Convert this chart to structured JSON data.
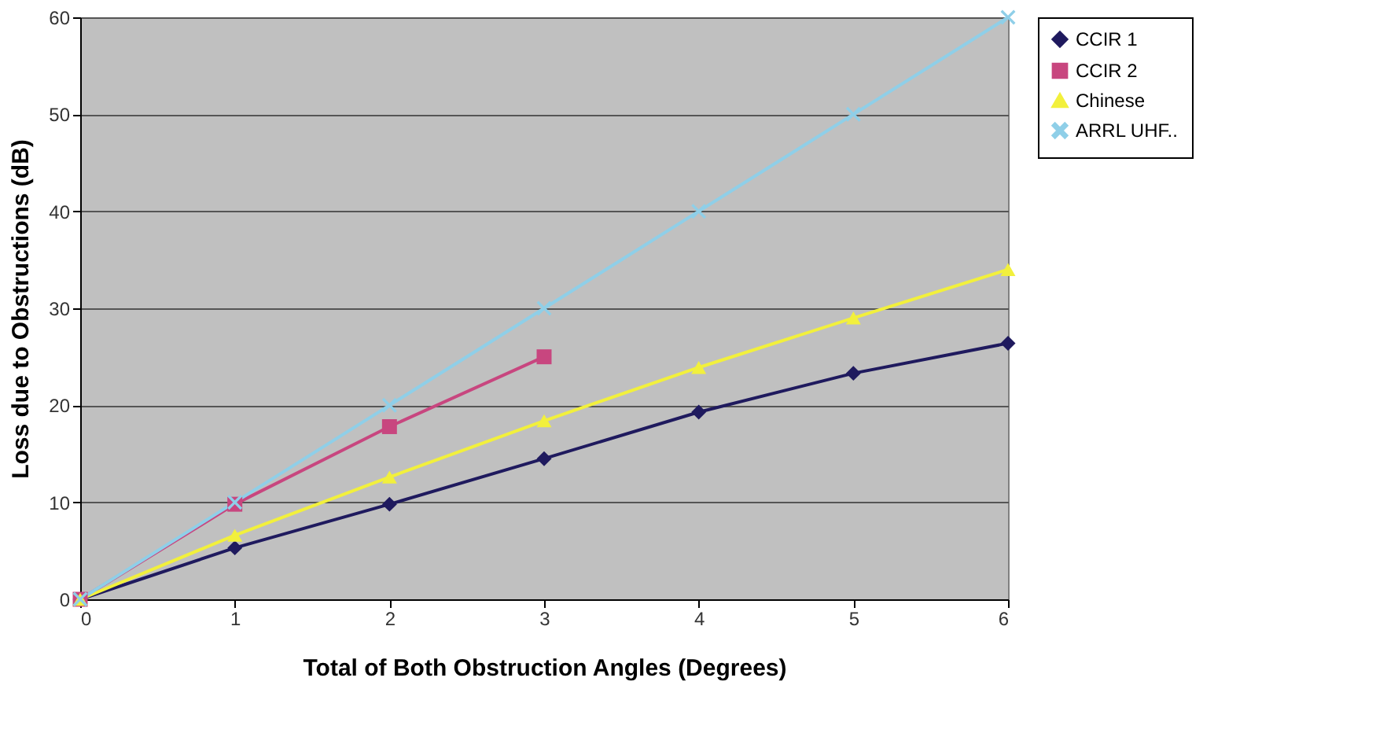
{
  "chart_data": {
    "type": "line",
    "xlabel": "Total of Both Obstruction Angles (Degrees)",
    "ylabel": "Loss due to Obstructions (dB)",
    "x": [
      0,
      1,
      2,
      3,
      4,
      5,
      6
    ],
    "series": [
      {
        "name": "CCIR 1",
        "color": "#1f1a5e",
        "marker": "diamond",
        "values": [
          0,
          5.3,
          9.8,
          14.5,
          19.3,
          23.3,
          26.4
        ]
      },
      {
        "name": "CCIR 2",
        "color": "#c8467f",
        "marker": "square",
        "values": [
          0,
          9.8,
          17.8,
          25,
          null,
          null,
          null
        ]
      },
      {
        "name": "Chinese",
        "color": "#f2f03c",
        "marker": "triangle",
        "values": [
          0,
          6.6,
          12.6,
          18.4,
          23.9,
          29,
          34
        ]
      },
      {
        "name": "ARRL UHF..",
        "color": "#8fcfe8",
        "marker": "cross",
        "values": [
          0,
          10,
          20,
          30,
          40,
          50,
          60
        ]
      }
    ],
    "xlim": [
      0,
      6
    ],
    "xticks": [
      0,
      1,
      2,
      3,
      4,
      5,
      6
    ],
    "ylim": [
      0,
      60
    ],
    "yticks": [
      0,
      10,
      20,
      30,
      40,
      50,
      60
    ],
    "grid": "y",
    "legend": "right"
  }
}
